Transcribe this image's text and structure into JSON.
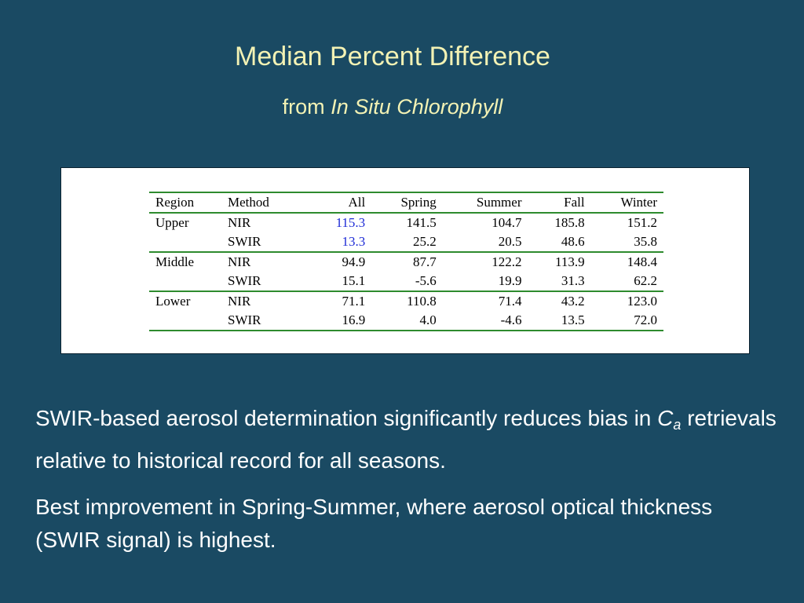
{
  "slide": {
    "title": "Median Percent Difference",
    "subtitle_prefix": "from",
    "subtitle_emphasis": "In Situ Chlorophyll"
  },
  "table": {
    "headers": [
      "Region",
      "Method",
      "All",
      "Spring",
      "Summer",
      "Fall",
      "Winter"
    ],
    "rows": [
      {
        "region": "Upper",
        "method": "NIR",
        "values": [
          "115.3",
          "141.5",
          "104.7",
          "185.8",
          "151.2"
        ]
      },
      {
        "region": "",
        "method": "SWIR",
        "values": [
          "13.3",
          "25.2",
          "20.5",
          "48.6",
          "35.8"
        ]
      },
      {
        "region": "Middle",
        "method": "NIR",
        "values": [
          "94.9",
          "87.7",
          "122.2",
          "113.9",
          "148.4"
        ]
      },
      {
        "region": "",
        "method": "SWIR",
        "values": [
          "15.1",
          "-5.6",
          "19.9",
          "31.3",
          "62.2"
        ]
      },
      {
        "region": "Lower",
        "method": "NIR",
        "values": [
          "71.1",
          "110.8",
          "71.4",
          "43.2",
          "123.0"
        ]
      },
      {
        "region": "",
        "method": "SWIR",
        "values": [
          "16.9",
          "4.0",
          "-4.6",
          "13.5",
          "72.0"
        ]
      }
    ],
    "highlight_color": "#1e2bd6",
    "rule_color": "#2e8b2e"
  },
  "text": {
    "p1_part1": "SWIR-based aerosol determination significantly reduces bias in",
    "p1_symbol": "C",
    "p1_subscript": "a",
    "p1_part2": "retrievals relative to historical record for all seasons.",
    "p2": "Best improvement in Spring-Summer, where aerosol optical thickness (SWIR signal) is highest."
  },
  "colors": {
    "background": "#1a4a63",
    "title": "#f3f2b4",
    "body_text": "#ffffff"
  }
}
